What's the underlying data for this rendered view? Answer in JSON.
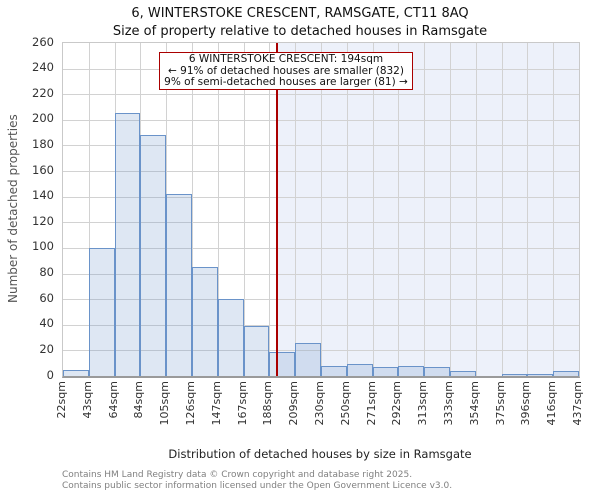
{
  "page": {
    "title": "6, WINTERSTOKE CRESCENT, RAMSGATE, CT11 8AQ",
    "subtitle": "Size of property relative to detached houses in Ramsgate"
  },
  "chart_data": {
    "type": "bar",
    "title": "6, WINTERSTOKE CRESCENT, RAMSGATE, CT11 8AQ",
    "subtitle": "Size of property relative to detached houses in Ramsgate",
    "xlabel": "Distribution of detached houses by size in Ramsgate",
    "ylabel": "Number of detached properties",
    "categories": [
      "22sqm",
      "43sqm",
      "64sqm",
      "84sqm",
      "105sqm",
      "126sqm",
      "147sqm",
      "167sqm",
      "188sqm",
      "209sqm",
      "230sqm",
      "250sqm",
      "271sqm",
      "292sqm",
      "313sqm",
      "333sqm",
      "354sqm",
      "375sqm",
      "396sqm",
      "416sqm",
      "437sqm"
    ],
    "bin_edges_sqm": [
      22,
      43,
      64,
      84,
      105,
      126,
      147,
      167,
      188,
      209,
      230,
      250,
      271,
      292,
      313,
      333,
      354,
      375,
      396,
      416,
      437
    ],
    "values": [
      5,
      100,
      205,
      188,
      142,
      85,
      60,
      39,
      19,
      26,
      8,
      9,
      7,
      8,
      7,
      4,
      0,
      1,
      1,
      4
    ],
    "ylim": [
      0,
      260
    ],
    "y_tick_step": 20,
    "grid": true,
    "legend": "none",
    "marker": {
      "value_sqm": 194,
      "label": "194sqm"
    },
    "annotation": {
      "line1": "6 WINTERSTOKE CRESCENT: 194sqm",
      "line2": "← 91% of detached houses are smaller (832)",
      "line3": "9% of semi-detached houses are larger (81) →"
    },
    "colors": {
      "bar_fill": "#dee7f3",
      "bar_edge": "#6a93c9",
      "marker_line": "#aa0000",
      "annotation_border": "#aa0000",
      "shade_right_of_marker": "#edf1fa",
      "grid": "#d2d2d2"
    }
  },
  "footer": {
    "line1": "Contains HM Land Registry data © Crown copyright and database right 2025.",
    "line2": "Contains public sector information licensed under the Open Government Licence v3.0."
  }
}
